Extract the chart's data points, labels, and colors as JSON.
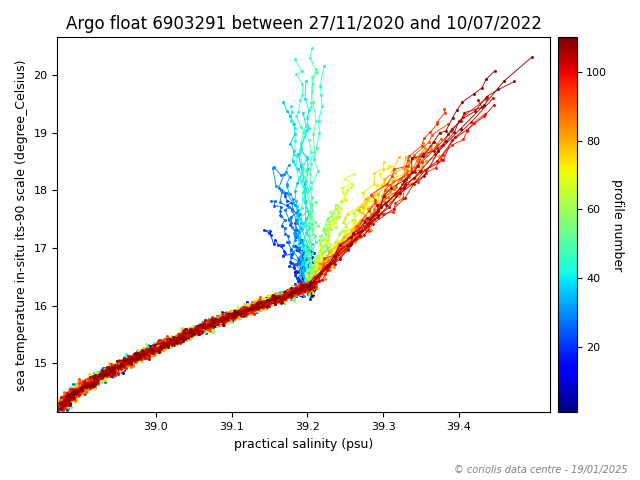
{
  "title": "Argo float 6903291 between 27/11/2020 and 10/07/2022",
  "xlabel": "practical salinity (psu)",
  "ylabel": "sea temperature in-situ its-90 scale (degree_Celsius)",
  "colorbar_label": "profile number",
  "colorbar_ticks": [
    20,
    40,
    60,
    80,
    100
  ],
  "colorbar_vmin": 1,
  "colorbar_vmax": 110,
  "xlim": [
    38.87,
    39.52
  ],
  "ylim": [
    14.15,
    20.65
  ],
  "n_profiles": 55,
  "copyright": "© coriolis data centre - 19/01/2025",
  "title_fontsize": 12,
  "label_fontsize": 9,
  "tick_fontsize": 8,
  "colormap": "jet",
  "xticks": [
    39.0,
    39.1,
    39.2,
    39.3,
    39.4
  ],
  "yticks": [
    15,
    16,
    17,
    18,
    19,
    20
  ],
  "fig_width": 6.4,
  "fig_height": 4.8,
  "dpi": 100
}
